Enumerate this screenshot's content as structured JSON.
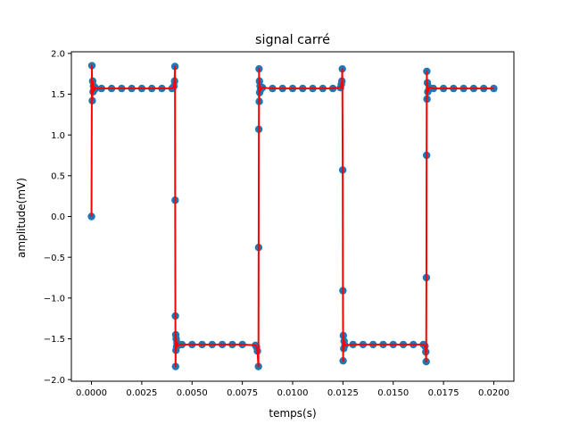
{
  "chart_data": {
    "type": "scatter",
    "title": "signal carré",
    "xlabel": "temps(s)",
    "ylabel": "amplitude(mV)",
    "xlim": [
      -0.001,
      0.021
    ],
    "ylim": [
      -2.02,
      2.02
    ],
    "xticks": [
      0.0,
      0.0025,
      0.005,
      0.0075,
      0.01,
      0.0125,
      0.015,
      0.0175,
      0.02
    ],
    "xtick_labels": [
      "0.0000",
      "0.0025",
      "0.0050",
      "0.0075",
      "0.0100",
      "0.0125",
      "0.0150",
      "0.0175",
      "0.0200"
    ],
    "yticks": [
      2.0,
      1.5,
      1.0,
      0.5,
      0.0,
      -0.5,
      -1.0,
      -1.5,
      -2.0
    ],
    "ytick_labels": [
      "2.0",
      "1.5",
      "1.0",
      "0.5",
      "0.0",
      "−0.5",
      "−1.0",
      "−1.5",
      "−2.0"
    ],
    "grid": false,
    "series": [
      {
        "style": "markers+line",
        "marker_color": "#1f77b4",
        "line_color": "#ff0000",
        "x": [
          0.0,
          2e-05,
          4e-05,
          6e-05,
          8e-05,
          0.0001,
          0.00012,
          0.00014,
          0.00016,
          0.00018,
          0.0002,
          0.0005,
          0.001,
          0.0015,
          0.002,
          0.0025,
          0.003,
          0.0035,
          0.004,
          0.00405,
          0.0041,
          0.00413,
          0.00415,
          0.00416,
          0.00417,
          0.00418,
          0.00419,
          0.0042,
          0.00421,
          0.00423,
          0.00425,
          0.0043,
          0.0045,
          0.005,
          0.0055,
          0.006,
          0.0065,
          0.007,
          0.0075,
          0.00815,
          0.0082,
          0.00825,
          0.0083,
          0.00831,
          0.00832,
          0.00833,
          0.00834,
          0.00835,
          0.00836,
          0.00838,
          0.0084,
          0.0085,
          0.009,
          0.0095,
          0.01,
          0.0105,
          0.011,
          0.0115,
          0.012,
          0.01238,
          0.01242,
          0.01245,
          0.01247,
          0.01249,
          0.0125,
          0.01251,
          0.01252,
          0.01254,
          0.01256,
          0.0126,
          0.013,
          0.0135,
          0.014,
          0.0145,
          0.015,
          0.0155,
          0.016,
          0.0165,
          0.01658,
          0.01662,
          0.01664,
          0.01665,
          0.01666,
          0.01667,
          0.01668,
          0.0167,
          0.01672,
          0.0168,
          0.017,
          0.0175,
          0.018,
          0.0185,
          0.019,
          0.0195,
          0.02
        ],
        "y": [
          0.0,
          1.85,
          1.42,
          1.66,
          1.53,
          1.6,
          1.55,
          1.59,
          1.56,
          1.58,
          1.57,
          1.57,
          1.57,
          1.57,
          1.57,
          1.57,
          1.57,
          1.57,
          1.57,
          1.58,
          1.6,
          1.66,
          1.84,
          0.2,
          -1.22,
          -1.84,
          -1.45,
          -1.64,
          -1.5,
          -1.6,
          -1.55,
          -1.58,
          -1.57,
          -1.57,
          -1.57,
          -1.57,
          -1.57,
          -1.57,
          -1.57,
          -1.58,
          -1.6,
          -1.65,
          -1.84,
          -0.38,
          1.07,
          1.81,
          1.41,
          1.66,
          1.52,
          1.6,
          1.55,
          1.58,
          1.57,
          1.57,
          1.57,
          1.57,
          1.57,
          1.57,
          1.57,
          1.58,
          1.62,
          1.66,
          1.81,
          0.57,
          -0.91,
          -1.77,
          -1.46,
          -1.62,
          -1.53,
          -1.58,
          -1.57,
          -1.57,
          -1.57,
          -1.57,
          -1.57,
          -1.57,
          -1.57,
          -1.57,
          -1.59,
          -1.66,
          -1.78,
          -0.75,
          0.75,
          1.78,
          1.44,
          1.64,
          1.53,
          1.58,
          1.57,
          1.57,
          1.57,
          1.57,
          1.57,
          1.57,
          1.57
        ]
      }
    ]
  }
}
